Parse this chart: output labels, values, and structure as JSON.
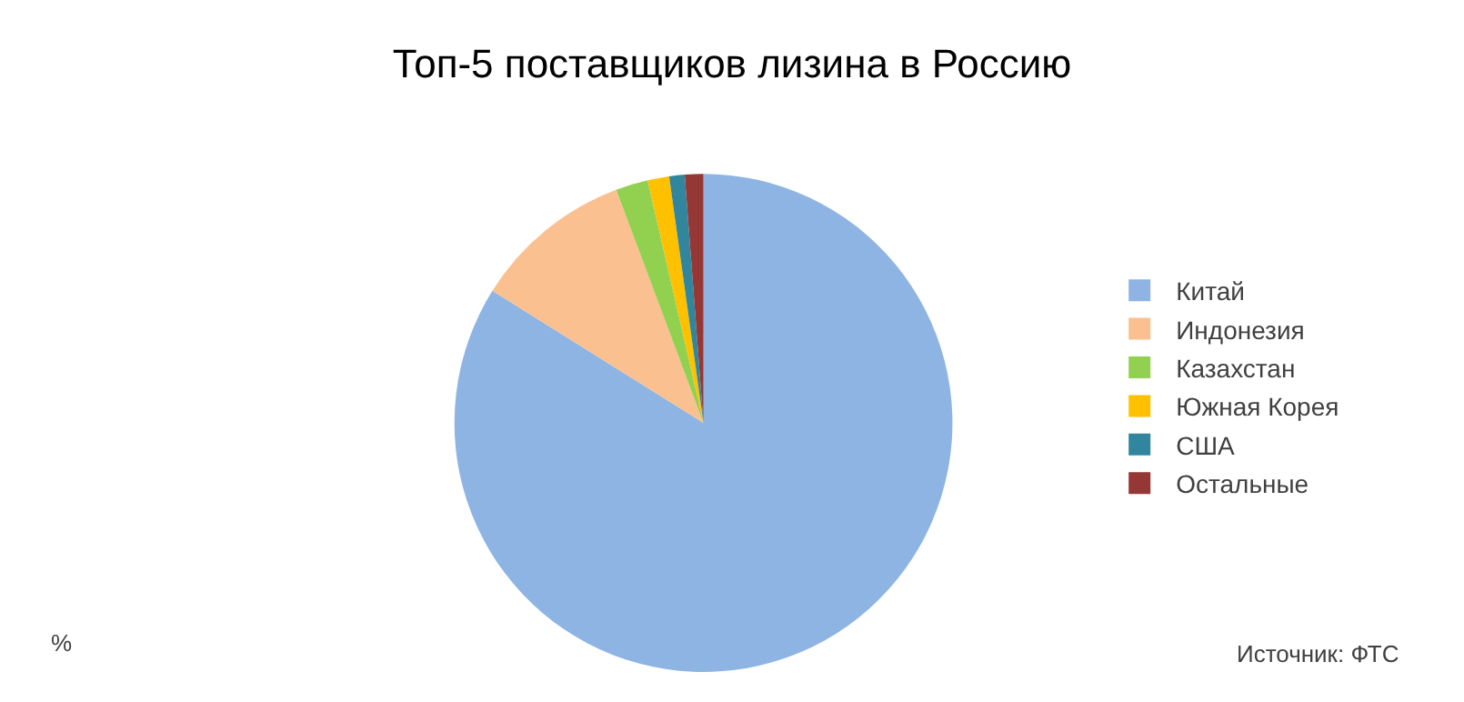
{
  "chart_data": {
    "type": "pie",
    "title": "Топ-5 поставщиков лизина в Россию",
    "categories": [
      "Китай",
      "Индонезия",
      "Казахстан",
      "Южная Корея",
      "США",
      "Остальные"
    ],
    "values": [
      83.9,
      10.4,
      2.1,
      1.4,
      1.0,
      1.2
    ],
    "colors": [
      "#8eb4e3",
      "#fac090",
      "#92d050",
      "#ffc000",
      "#31859c",
      "#953735"
    ],
    "legend": "right",
    "annotations": [
      "%",
      "Источник: ФТС"
    ]
  }
}
